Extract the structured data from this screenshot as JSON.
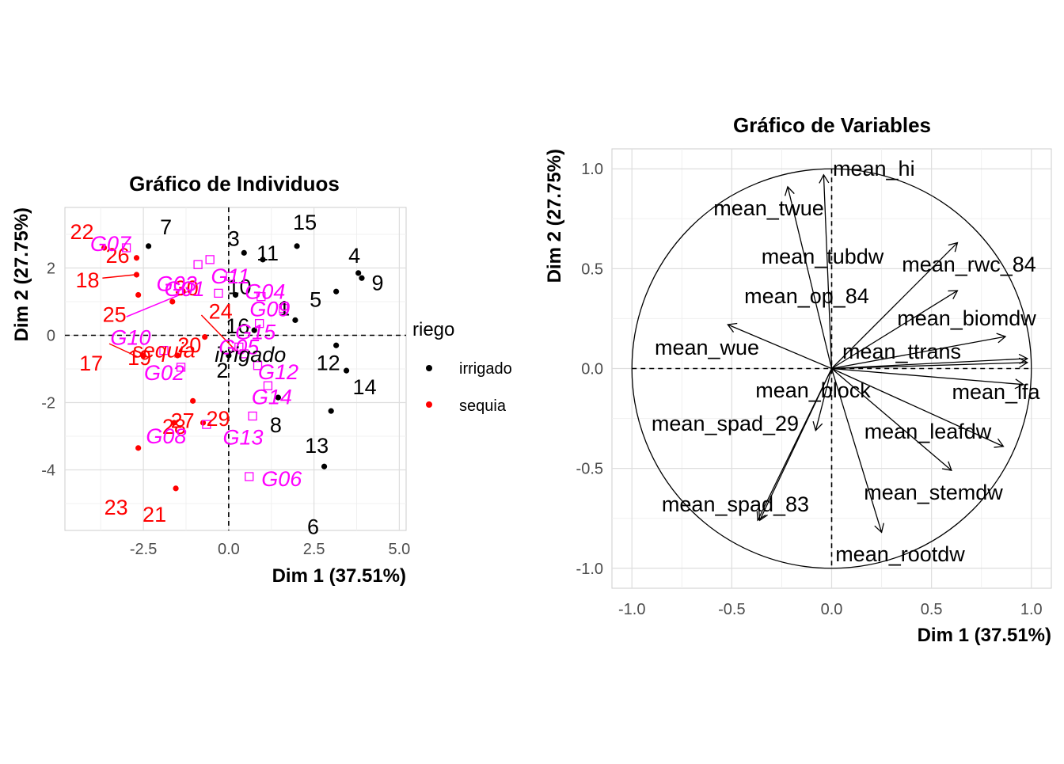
{
  "chart_data": [
    {
      "type": "scatter",
      "title": "Gráfico de Individuos",
      "xlabel": "Dim 1 (37.51%)",
      "ylabel": "Dim 2 (27.75%)",
      "xlim": [
        -4.8,
        5.2
      ],
      "ylim": [
        -5.8,
        3.8
      ],
      "xticks": [
        -2.5,
        0.0,
        2.5,
        5.0
      ],
      "xtick_labels": [
        "-2.5",
        "0.0",
        "2.5",
        "5.0"
      ],
      "yticks": [
        -4,
        -2,
        0,
        2
      ],
      "ytick_labels": [
        "-4",
        "-2",
        "0",
        "2"
      ],
      "grid": true,
      "legend_position": "right",
      "legend": {
        "title": "riego",
        "items": [
          {
            "label": "irrigado",
            "color": "#000000"
          },
          {
            "label": "sequia",
            "color": "#ff0000"
          }
        ]
      },
      "colors": {
        "irrigado": "#000000",
        "sequia": "#ff0000",
        "genotype": "#ff00ff"
      },
      "series": [
        {
          "name": "irrigado",
          "points": [
            {
              "id": "1",
              "x": 1.95,
              "y": 0.45
            },
            {
              "id": "2",
              "x": 0.0,
              "y": -0.6
            },
            {
              "id": "3",
              "x": 0.45,
              "y": 2.45
            },
            {
              "id": "4",
              "x": 3.8,
              "y": 1.85
            },
            {
              "id": "5",
              "x": 3.15,
              "y": 1.3
            },
            {
              "id": "6",
              "x": 2.8,
              "y": -3.9
            },
            {
              "id": "7",
              "x": -2.35,
              "y": 2.65
            },
            {
              "id": "8",
              "x": 1.45,
              "y": -1.85
            },
            {
              "id": "9",
              "x": 3.9,
              "y": 1.7
            },
            {
              "id": "10",
              "x": 0.2,
              "y": 1.2
            },
            {
              "id": "11",
              "x": 1.0,
              "y": 2.25
            },
            {
              "id": "12",
              "x": 3.15,
              "y": -0.3
            },
            {
              "id": "13",
              "x": 3.0,
              "y": -2.25
            },
            {
              "id": "14",
              "x": 3.45,
              "y": -1.05
            },
            {
              "id": "15",
              "x": 2.0,
              "y": 2.65
            },
            {
              "id": "16",
              "x": 0.75,
              "y": 0.15
            }
          ]
        },
        {
          "name": "sequia",
          "points": [
            {
              "id": "17",
              "x": -2.5,
              "y": -0.6
            },
            {
              "id": "18",
              "x": -2.7,
              "y": 1.8
            },
            {
              "id": "19",
              "x": -2.5,
              "y": -0.6
            },
            {
              "id": "20",
              "x": -1.5,
              "y": -0.6
            },
            {
              "id": "21",
              "x": -1.55,
              "y": -4.55
            },
            {
              "id": "22",
              "x": -3.65,
              "y": 2.6
            },
            {
              "id": "23",
              "x": -2.65,
              "y": -3.35
            },
            {
              "id": "24",
              "x": -0.7,
              "y": -0.05
            },
            {
              "id": "25",
              "x": -2.65,
              "y": 1.2
            },
            {
              "id": "26",
              "x": -2.7,
              "y": 2.3
            },
            {
              "id": "27",
              "x": -1.05,
              "y": -1.95
            },
            {
              "id": "28",
              "x": -1.6,
              "y": -2.6
            },
            {
              "id": "29",
              "x": -0.75,
              "y": -2.6
            },
            {
              "id": "30",
              "x": -1.65,
              "y": 1.0
            }
          ]
        }
      ],
      "supplementary_categories": [
        {
          "id": "G01",
          "x": -0.55,
          "y": 2.25
        },
        {
          "id": "G02",
          "x": -1.4,
          "y": -0.95
        },
        {
          "id": "G03",
          "x": -0.9,
          "y": 2.1
        },
        {
          "id": "G04",
          "x": 0.95,
          "y": 1.15
        },
        {
          "id": "G05",
          "x": 0.3,
          "y": -0.35
        },
        {
          "id": "G06",
          "x": 0.6,
          "y": -4.2
        },
        {
          "id": "G07",
          "x": -3.0,
          "y": 2.6
        },
        {
          "id": "G08",
          "x": -0.65,
          "y": -2.65
        },
        {
          "id": "G09",
          "x": 1.6,
          "y": 0.8
        },
        {
          "id": "G10",
          "x": -0.3,
          "y": 1.25
        },
        {
          "id": "G11",
          "x": 0.05,
          "y": 1.75
        },
        {
          "id": "G12",
          "x": 0.85,
          "y": -0.9
        },
        {
          "id": "G13",
          "x": 0.7,
          "y": -2.4
        },
        {
          "id": "G14",
          "x": 1.15,
          "y": -1.5
        },
        {
          "id": "G15",
          "x": 0.9,
          "y": 0.35
        },
        {
          "id": "irrigado",
          "x": 0.45,
          "y": -0.55
        },
        {
          "id": "sequia",
          "x": -1.9,
          "y": -0.45
        }
      ]
    },
    {
      "type": "scatter",
      "title": "Gráfico de Variables",
      "xlabel": "Dim 1 (37.51%)",
      "ylabel": "Dim 2 (27.75%)",
      "xlim": [
        -1.1,
        1.1
      ],
      "ylim": [
        -1.1,
        1.1
      ],
      "xticks": [
        -1.0,
        -0.5,
        0.0,
        0.5,
        1.0
      ],
      "xtick_labels": [
        "-1.0",
        "-0.5",
        "0.0",
        "0.5",
        "1.0"
      ],
      "yticks": [
        -1.0,
        -0.5,
        0.0,
        0.5,
        1.0
      ],
      "ytick_labels": [
        "-1.0",
        "-0.5",
        "0.0",
        "0.5",
        "1.0"
      ],
      "grid": true,
      "unit_circle": true,
      "variables": [
        {
          "name": "mean_hi",
          "x": -0.04,
          "y": 0.97
        },
        {
          "name": "mean_twue",
          "x": -0.22,
          "y": 0.91
        },
        {
          "name": "mean_tubdw",
          "x": 0.63,
          "y": 0.63
        },
        {
          "name": "mean_rwc_84",
          "x": 0.63,
          "y": 0.39
        },
        {
          "name": "mean_op_84",
          "x": 0.87,
          "y": 0.16
        },
        {
          "name": "mean_biomdw",
          "x": 0.98,
          "y": 0.05
        },
        {
          "name": "mean_ttrans",
          "x": 0.98,
          "y": 0.03
        },
        {
          "name": "mean_wue",
          "x": -0.52,
          "y": 0.22
        },
        {
          "name": "mean_lfa",
          "x": 0.96,
          "y": -0.08
        },
        {
          "name": "mean_block",
          "x": -0.08,
          "y": -0.31
        },
        {
          "name": "mean_spad_29",
          "x": -0.37,
          "y": -0.76
        },
        {
          "name": "mean_leafdw",
          "x": 0.86,
          "y": -0.39
        },
        {
          "name": "mean_stemdw",
          "x": 0.6,
          "y": -0.51
        },
        {
          "name": "mean_spad_83",
          "x": -0.36,
          "y": -0.76
        },
        {
          "name": "mean_rootdw",
          "x": 0.25,
          "y": -0.82
        }
      ]
    }
  ]
}
